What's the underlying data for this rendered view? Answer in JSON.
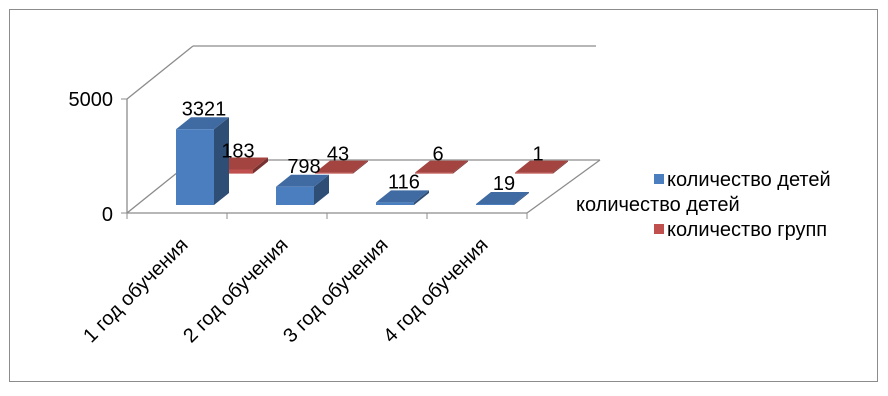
{
  "chart_data": {
    "type": "bar",
    "style": "3d-clustered-column",
    "categories": [
      "1 год обучения",
      "2 год обучения",
      "3 год обучения",
      "4 год обучения"
    ],
    "series": [
      {
        "name": "количество детей",
        "values": [
          3321,
          798,
          116,
          19
        ],
        "color": "#4a7ebf"
      },
      {
        "name": "количество групп",
        "values": [
          183,
          43,
          6,
          1
        ],
        "color": "#c0504d"
      }
    ],
    "ylim": [
      0,
      5000
    ],
    "ytick_labels": [
      "0",
      "5000"
    ],
    "legend_position": "right",
    "legend_extra_label": "количество детей",
    "grid": false
  }
}
